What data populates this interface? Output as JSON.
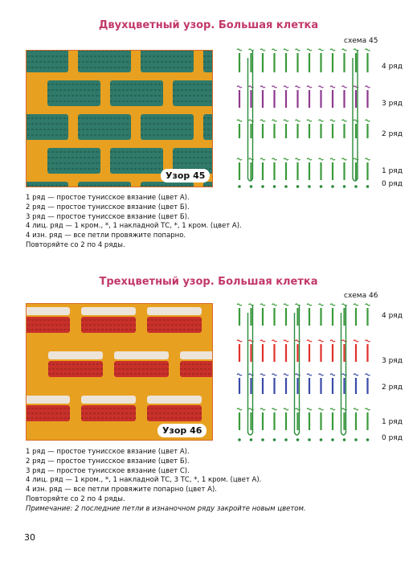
{
  "pattern45": {
    "title": "Двухцветный узор. Большая клетка",
    "badge": "Узор 45",
    "schema_label": "схема 45",
    "row_labels": [
      "4 ряд",
      "3 ряд",
      "2 ряд",
      "1 ряд",
      "0 ряд"
    ],
    "colors": {
      "base": "#2f7a6a",
      "grid": "#e8a020",
      "row4": "#3a9a3a",
      "row3": "#8e3a8e",
      "row2": "#3a9a3a",
      "row1": "#3a9a3a"
    },
    "instructions": [
      "1 ряд — простое тунисское вязание (цвет А).",
      "2 ряд — простое тунисское вязание (цвет Б).",
      "3 ряд — простое тунисское вязание (цвет Б).",
      "4 лиц. ряд — 1 кром., *, 1 накладной ТС, *, 1 кром. (цвет А).",
      "4 изн. ряд — все петли провяжите попарно.",
      "Повторяйте со 2 по 4 ряды."
    ]
  },
  "pattern46": {
    "title": "Трехцветный узор. Большая клетка",
    "badge": "Узор 46",
    "schema_label": "схема 46",
    "row_labels": [
      "4 ряд",
      "3 ряд",
      "2 ряд",
      "1 ряд",
      "0 ряд"
    ],
    "colors": {
      "base": "#e8a020",
      "red": "#c8302a",
      "white": "#ece4d8",
      "row4": "#3a9a3a",
      "row3": "#e0302a",
      "row2": "#3a4aa8",
      "row1": "#3a9a3a"
    },
    "instructions": [
      "1 ряд — простое тунисское вязание (цвет А).",
      "2 ряд — простое тунисское вязание (цвет Б).",
      "3 ряд — простое тунисское вязание (цвет С).",
      "4 лиц. ряд — 1 кром., *, 1 накладной ТС, 3 ТС, *, 1 кром. (цвет А).",
      "4 изн. ряд — все петли провяжите попарно (цвет А).",
      "Повторяйте со 2 по 4 ряды."
    ],
    "note_key": "Примечание:",
    "note_text": " 2 последние  петли в изнаночном ряду закройте новым цветом."
  },
  "page_number": "30"
}
